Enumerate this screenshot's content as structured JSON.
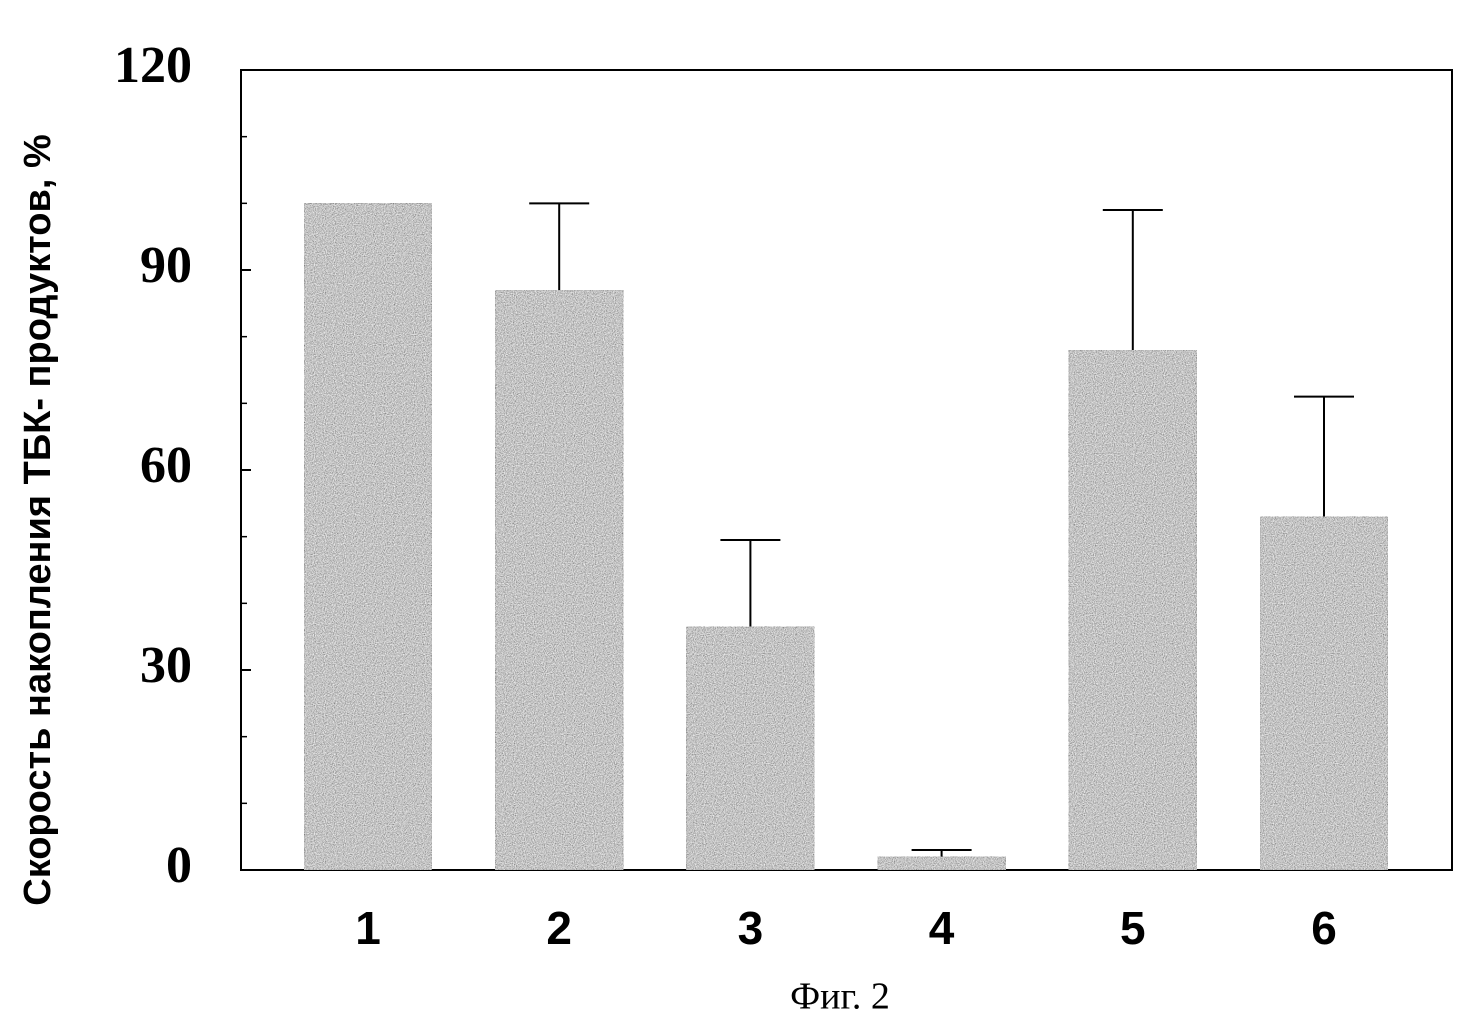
{
  "chart_data": {
    "type": "bar",
    "y_label": "Скорость накопления ТБК- продуктов, %",
    "caption": "Фиг. 2",
    "categories": [
      "1",
      "2",
      "3",
      "4",
      "5",
      "6"
    ],
    "values": [
      100,
      87,
      36.5,
      2,
      78,
      53
    ],
    "errors": [
      null,
      13,
      13,
      1,
      21,
      18
    ],
    "color": "#5a5a5a",
    "ylim": [
      0,
      120
    ],
    "yticks": [
      0,
      30,
      60,
      90,
      120
    ],
    "minor_yticks": [
      10,
      20,
      40,
      50,
      70,
      80,
      100,
      110
    ]
  }
}
